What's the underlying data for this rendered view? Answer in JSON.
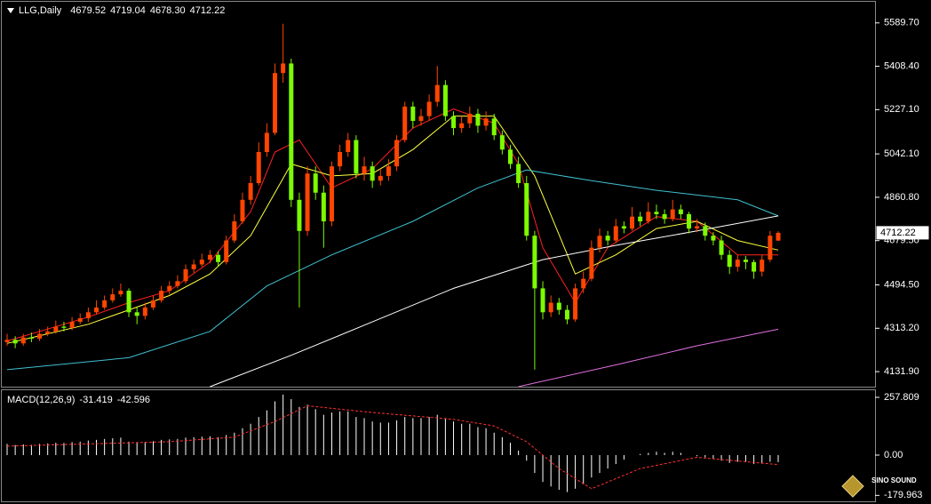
{
  "chart_data": {
    "type": "candlestick",
    "symbol": "LLG,Daily",
    "ohlc_labels": [
      "4679.52",
      "4719.04",
      "4678.30",
      "4712.22"
    ],
    "up_color": "#ff4500",
    "down_color": "#7cfc00",
    "ylim": [
      4069,
      5678
    ],
    "yticks": [
      {
        "value": 5589.7,
        "label": "5589.70"
      },
      {
        "value": 5408.4,
        "label": "5408.40"
      },
      {
        "value": 5227.1,
        "label": "5227.10"
      },
      {
        "value": 5042.1,
        "label": "5042.10"
      },
      {
        "value": 4860.8,
        "label": "4860.80"
      },
      {
        "value": 4679.5,
        "label": "4679.50"
      },
      {
        "value": 4494.5,
        "label": "4494.50"
      },
      {
        "value": 4313.2,
        "label": "4313.20"
      },
      {
        "value": 4131.9,
        "label": "4131.90"
      }
    ],
    "candles": [
      [
        4255,
        4290,
        4240,
        4265
      ],
      [
        4265,
        4280,
        4230,
        4250
      ],
      [
        4250,
        4290,
        4240,
        4275
      ],
      [
        4275,
        4295,
        4255,
        4270
      ],
      [
        4270,
        4310,
        4260,
        4290
      ],
      [
        4290,
        4320,
        4280,
        4300
      ],
      [
        4300,
        4345,
        4290,
        4320
      ],
      [
        4320,
        4340,
        4300,
        4315
      ],
      [
        4315,
        4360,
        4305,
        4340
      ],
      [
        4340,
        4375,
        4330,
        4355
      ],
      [
        4355,
        4400,
        4340,
        4380
      ],
      [
        4380,
        4430,
        4370,
        4400
      ],
      [
        4400,
        4450,
        4390,
        4430
      ],
      [
        4430,
        4480,
        4420,
        4455
      ],
      [
        4455,
        4500,
        4445,
        4470
      ],
      [
        4470,
        4480,
        4360,
        4380
      ],
      [
        4380,
        4400,
        4330,
        4365
      ],
      [
        4365,
        4420,
        4350,
        4400
      ],
      [
        4400,
        4450,
        4390,
        4430
      ],
      [
        4430,
        4490,
        4420,
        4470
      ],
      [
        4470,
        4510,
        4455,
        4490
      ],
      [
        4490,
        4535,
        4480,
        4510
      ],
      [
        4510,
        4580,
        4500,
        4560
      ],
      [
        4560,
        4600,
        4545,
        4580
      ],
      [
        4580,
        4625,
        4570,
        4600
      ],
      [
        4600,
        4640,
        4585,
        4620
      ],
      [
        4620,
        4635,
        4570,
        4590
      ],
      [
        4590,
        4700,
        4580,
        4680
      ],
      [
        4680,
        4790,
        4670,
        4760
      ],
      [
        4760,
        4880,
        4750,
        4850
      ],
      [
        4850,
        4950,
        4830,
        4920
      ],
      [
        4920,
        5090,
        4910,
        5050
      ],
      [
        5050,
        5170,
        5030,
        5130
      ],
      [
        5130,
        5420,
        5120,
        5380
      ],
      [
        5380,
        5586,
        5340,
        5420
      ],
      [
        5420,
        5440,
        4820,
        4850
      ],
      [
        4850,
        4880,
        4400,
        4720
      ],
      [
        4720,
        4990,
        4700,
        4960
      ],
      [
        4960,
        4990,
        4850,
        4880
      ],
      [
        4880,
        4910,
        4650,
        4760
      ],
      [
        4760,
        5010,
        4740,
        4990
      ],
      [
        4990,
        5080,
        4970,
        5050
      ],
      [
        5050,
        5130,
        5030,
        5100
      ],
      [
        5100,
        5120,
        4940,
        4960
      ],
      [
        4960,
        5030,
        4930,
        4990
      ],
      [
        4990,
        5010,
        4900,
        4930
      ],
      [
        4930,
        4980,
        4910,
        4950
      ],
      [
        4950,
        5020,
        4930,
        4990
      ],
      [
        4990,
        5120,
        4970,
        5100
      ],
      [
        5100,
        5260,
        5090,
        5240
      ],
      [
        5240,
        5260,
        5150,
        5180
      ],
      [
        5180,
        5230,
        5160,
        5200
      ],
      [
        5200,
        5290,
        5180,
        5260
      ],
      [
        5260,
        5410,
        5240,
        5330
      ],
      [
        5330,
        5350,
        5180,
        5200
      ],
      [
        5200,
        5220,
        5120,
        5150
      ],
      [
        5150,
        5200,
        5130,
        5170
      ],
      [
        5170,
        5240,
        5150,
        5210
      ],
      [
        5210,
        5230,
        5130,
        5160
      ],
      [
        5160,
        5220,
        5140,
        5190
      ],
      [
        5190,
        5210,
        5100,
        5120
      ],
      [
        5120,
        5140,
        5040,
        5060
      ],
      [
        5060,
        5080,
        4980,
        5000
      ],
      [
        5000,
        5030,
        4900,
        4920
      ],
      [
        4920,
        4950,
        4680,
        4700
      ],
      [
        4700,
        4720,
        4140,
        4480
      ],
      [
        4480,
        4510,
        4350,
        4380
      ],
      [
        4380,
        4450,
        4360,
        4420
      ],
      [
        4420,
        4440,
        4370,
        4390
      ],
      [
        4390,
        4410,
        4330,
        4350
      ],
      [
        4350,
        4500,
        4340,
        4480
      ],
      [
        4480,
        4550,
        4460,
        4520
      ],
      [
        4520,
        4680,
        4510,
        4650
      ],
      [
        4650,
        4730,
        4630,
        4700
      ],
      [
        4700,
        4720,
        4660,
        4680
      ],
      [
        4680,
        4770,
        4670,
        4740
      ],
      [
        4740,
        4760,
        4710,
        4730
      ],
      [
        4730,
        4820,
        4720,
        4780
      ],
      [
        4780,
        4800,
        4740,
        4760
      ],
      [
        4760,
        4840,
        4750,
        4800
      ],
      [
        4800,
        4830,
        4770,
        4790
      ],
      [
        4790,
        4810,
        4750,
        4770
      ],
      [
        4770,
        4850,
        4760,
        4810
      ],
      [
        4810,
        4830,
        4770,
        4790
      ],
      [
        4790,
        4800,
        4710,
        4730
      ],
      [
        4730,
        4770,
        4715,
        4740
      ],
      [
        4740,
        4755,
        4680,
        4700
      ],
      [
        4700,
        4715,
        4660,
        4680
      ],
      [
        4680,
        4700,
        4600,
        4620
      ],
      [
        4620,
        4640,
        4540,
        4570
      ],
      [
        4570,
        4620,
        4550,
        4600
      ],
      [
        4600,
        4615,
        4560,
        4590
      ],
      [
        4590,
        4600,
        4520,
        4550
      ],
      [
        4550,
        4620,
        4530,
        4600
      ],
      [
        4600,
        4720,
        4590,
        4700
      ],
      [
        4679.52,
        4719.04,
        4678.3,
        4712.22
      ]
    ],
    "lines": [
      {
        "color": "#ff2020",
        "x": [
          0,
          10,
          15,
          20,
          25,
          30,
          33,
          36,
          40,
          45,
          50,
          55,
          60,
          63,
          66,
          70,
          74,
          80,
          85,
          90,
          95
        ],
        "values": [
          4260,
          4360,
          4420,
          4470,
          4590,
          4800,
          5050,
          5100,
          4900,
          4980,
          5150,
          5230,
          5170,
          5000,
          4650,
          4420,
          4650,
          4780,
          4760,
          4620,
          4620
        ]
      },
      {
        "color": "#ffff40",
        "x": [
          0,
          10,
          20,
          25,
          30,
          35,
          40,
          45,
          50,
          55,
          60,
          65,
          70,
          75,
          80,
          85,
          90,
          95
        ],
        "values": [
          4250,
          4330,
          4450,
          4540,
          4700,
          5000,
          4950,
          4960,
          5060,
          5200,
          5200,
          4950,
          4540,
          4620,
          4730,
          4760,
          4680,
          4640
        ]
      },
      {
        "color": "#40c0d0",
        "x": [
          0,
          15,
          25,
          32,
          40,
          50,
          58,
          64,
          72,
          80,
          90,
          95
        ],
        "values": [
          4140,
          4190,
          4300,
          4490,
          4620,
          4760,
          4900,
          4975,
          4930,
          4890,
          4850,
          4783
        ]
      },
      {
        "color": "#ffffff",
        "x": [
          25,
          35,
          45,
          55,
          66,
          75,
          85,
          95
        ],
        "values": [
          4069,
          4200,
          4340,
          4480,
          4600,
          4660,
          4720,
          4783
        ]
      },
      {
        "color": "#e070e0",
        "x": [
          63,
          75,
          85,
          95
        ],
        "values": [
          4069,
          4160,
          4240,
          4309
        ]
      }
    ],
    "macd": {
      "title": "MACD(12,26,9)",
      "ylim": [
        -198.5,
        285.6
      ],
      "yticks": [
        257.809,
        {
          "value": 0,
          "label": "0.00"
        },
        -179.963
      ],
      "histogram_color": "#ffffff",
      "histogram": [
        50,
        45,
        48,
        46,
        50,
        52,
        55,
        54,
        58,
        60,
        65,
        68,
        72,
        75,
        78,
        60,
        55,
        58,
        62,
        68,
        70,
        72,
        78,
        80,
        82,
        84,
        80,
        90,
        100,
        120,
        140,
        170,
        200,
        240,
        270,
        250,
        215,
        225,
        205,
        180,
        190,
        195,
        195,
        170,
        165,
        150,
        145,
        145,
        155,
        170,
        165,
        165,
        170,
        180,
        165,
        150,
        140,
        140,
        125,
        120,
        100,
        80,
        55,
        20,
        -25,
        -80,
        -120,
        -140,
        -155,
        -165,
        -150,
        -130,
        -100,
        -80,
        -60,
        -40,
        -20,
        0,
        5,
        10,
        15,
        10,
        15,
        10,
        0,
        -5,
        -10,
        -15,
        -25,
        -35,
        -30,
        -30,
        -40,
        -35,
        -30,
        -31.419
      ],
      "signal": {
        "color": "#ff3030",
        "x": [
          0,
          20,
          28,
          33,
          37,
          45,
          55,
          60,
          64,
          68,
          72,
          78,
          85,
          95
        ],
        "values": [
          40,
          60,
          80,
          150,
          220,
          190,
          160,
          130,
          60,
          -60,
          -150,
          -60,
          -10,
          -42.596
        ]
      }
    },
    "logo_text": "SINO SOUND"
  }
}
